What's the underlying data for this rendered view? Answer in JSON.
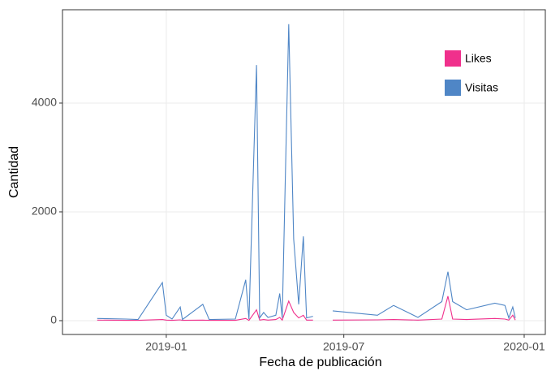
{
  "chart_data": {
    "type": "line",
    "xlabel": "Fecha de publicación",
    "ylabel": "Cantidad",
    "x": [
      2018.807,
      2018.887,
      2018.921,
      2018.989,
      2019.0,
      2019.016,
      2019.039,
      2019.045,
      2019.102,
      2019.12,
      2019.193,
      2019.222,
      2019.231,
      2019.252,
      2019.261,
      2019.272,
      2019.284,
      2019.306,
      2019.317,
      2019.324,
      2019.342,
      2019.356,
      2019.37,
      2019.383,
      2019.392,
      2019.41,
      2019.44,
      2019.465,
      2019.59,
      2019.635,
      2019.703,
      2019.77,
      2019.787,
      2019.8,
      2019.839,
      2019.918,
      2019.946,
      2019.957,
      2019.968,
      2019.975
    ],
    "series": [
      {
        "name": "Likes",
        "color": "#f0308c",
        "values": [
          10,
          5,
          5,
          20,
          10,
          5,
          15,
          5,
          10,
          5,
          5,
          40,
          5,
          200,
          10,
          20,
          10,
          20,
          60,
          10,
          360,
          150,
          50,
          100,
          10,
          10,
          null,
          10,
          15,
          20,
          10,
          30,
          450,
          30,
          20,
          40,
          30,
          10,
          100,
          10
        ]
      },
      {
        "name": "Visitas",
        "color": "#4f86c6",
        "values": [
          40,
          30,
          20,
          700,
          100,
          30,
          250,
          20,
          300,
          20,
          30,
          750,
          30,
          4700,
          50,
          150,
          60,
          100,
          500,
          50,
          5450,
          1500,
          300,
          1550,
          50,
          80,
          null,
          180,
          100,
          280,
          60,
          350,
          900,
          350,
          200,
          320,
          280,
          50,
          250,
          50
        ]
      }
    ],
    "xlim": [
      2018.71,
      2020.059
    ],
    "xticks": [
      {
        "value": 2019.0,
        "label": "2019-01"
      },
      {
        "value": 2019.496,
        "label": "2019-07"
      },
      {
        "value": 2020.0,
        "label": "2020-01"
      }
    ],
    "ylim": [
      -254,
      5716
    ],
    "yticks": [
      0,
      2000,
      4000
    ],
    "grid": true,
    "legend": "top-right"
  }
}
